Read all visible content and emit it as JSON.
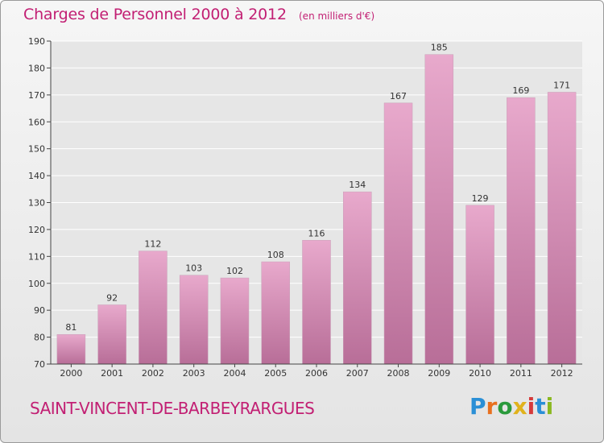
{
  "title": "Charges de Personnel 2000 à 2012",
  "subtitle": "(en milliers d'€)",
  "commune": "SAINT-VINCENT-DE-BARBEYRARGUES",
  "logo": {
    "letters": [
      "P",
      "r",
      "o",
      "x",
      "i",
      "t",
      "i"
    ],
    "colors": [
      "#2a8fd6",
      "#e8701f",
      "#2a9a3c",
      "#e0b21c",
      "#d63a3a",
      "#2a8fd6",
      "#8ab820"
    ]
  },
  "colors": {
    "accent": "#c21f73",
    "bar_top": "#e8a9cc",
    "bar_bottom": "#b86e98",
    "plot_bg": "#e6e6e6"
  },
  "chart_data": {
    "type": "bar",
    "title": "Charges de Personnel 2000 à 2012",
    "subtitle": "(en milliers d'€)",
    "categories": [
      "2000",
      "2001",
      "2002",
      "2003",
      "2004",
      "2005",
      "2006",
      "2007",
      "2008",
      "2009",
      "2010",
      "2011",
      "2012"
    ],
    "values": [
      81,
      92,
      112,
      103,
      102,
      108,
      116,
      134,
      167,
      185,
      129,
      169,
      171
    ],
    "ylim": [
      70,
      190
    ],
    "yticks": [
      70,
      80,
      90,
      100,
      110,
      120,
      130,
      140,
      150,
      160,
      170,
      180,
      190
    ],
    "grid": true,
    "legend": "none"
  }
}
